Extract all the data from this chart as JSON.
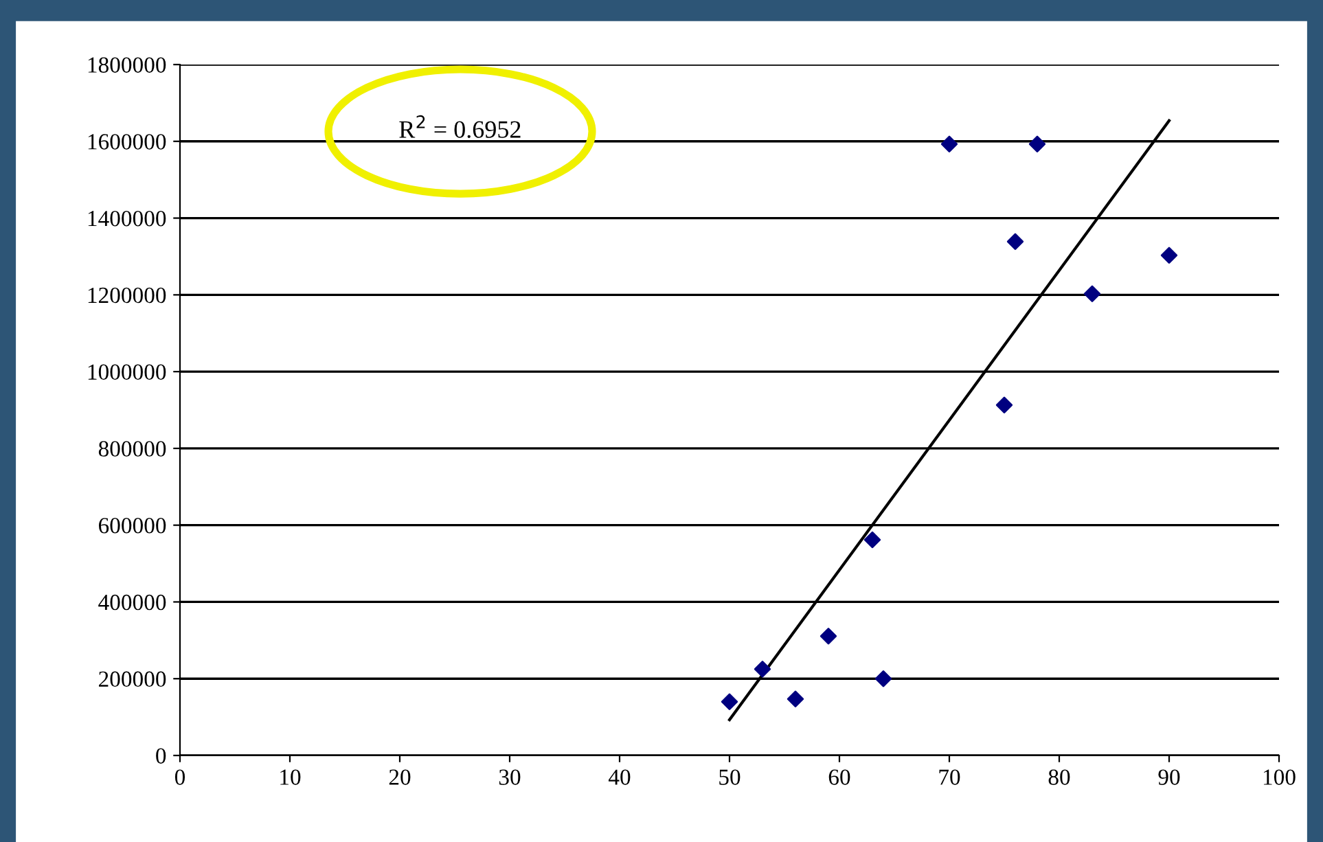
{
  "chart_data": {
    "type": "scatter",
    "annotations": [
      "R$^{2}$ = 0.6952"
    ],
    "x": [
      50,
      53,
      56,
      59,
      63,
      64,
      70,
      75,
      76,
      78,
      83,
      90
    ],
    "series": [
      {
        "color": "#000080",
        "marker": "diamond",
        "values": [
          140000,
          225000,
          147000,
          311000,
          562000,
          200000,
          1593000,
          913000,
          1339000,
          1593000,
          1203000,
          1303000
        ]
      },
      {
        "type": "line",
        "marker": "none",
        "color": "#000000",
        "x": [
          50,
          90
        ],
        "values": [
          93000,
          1654000
        ]
      }
    ],
    "xlim": [
      0,
      100
    ],
    "xticks": [
      0,
      10,
      20,
      30,
      40,
      50,
      60,
      70,
      80,
      90,
      100
    ],
    "ylim": [
      0,
      1800000
    ],
    "yticks": [
      0,
      200000,
      400000,
      600000,
      800000,
      1000000,
      1200000,
      1400000,
      1600000,
      1800000
    ],
    "grid": "y"
  }
}
